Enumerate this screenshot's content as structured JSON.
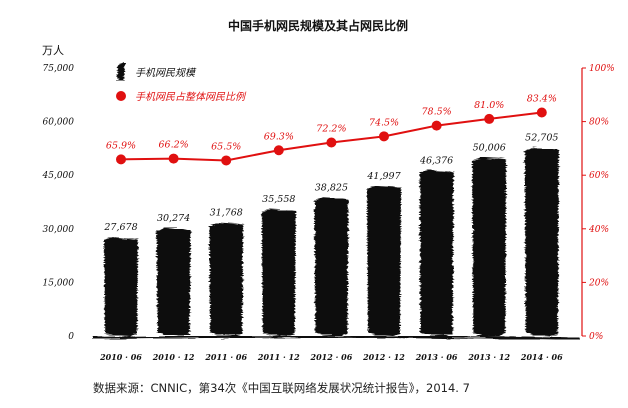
{
  "chart_data": {
    "type": "bar+line",
    "title": "中国手机网民规模及其占网民比例",
    "y_unit_label": "万人",
    "categories": [
      "2010 · 06",
      "2010 · 12",
      "2011 · 06",
      "2011 · 12",
      "2012 · 06",
      "2012 · 12",
      "2013 · 06",
      "2013 · 12",
      "2014 · 06"
    ],
    "series": [
      {
        "name": "手机网民规模",
        "type": "bar",
        "axis": "left",
        "values": [
          27678,
          30274,
          31768,
          35558,
          38825,
          41997,
          46376,
          50006,
          52705
        ],
        "labels": [
          "27,678",
          "30,274",
          "31,768",
          "35,558",
          "38,825",
          "41,997",
          "46,376",
          "50,006",
          "52,705"
        ]
      },
      {
        "name": "手机网民占整体网民比例",
        "type": "line",
        "axis": "right",
        "values": [
          65.9,
          66.2,
          65.5,
          69.3,
          72.2,
          74.5,
          78.5,
          81.0,
          83.4
        ],
        "labels": [
          "65.9%",
          "66.2%",
          "65.5%",
          "69.3%",
          "72.2%",
          "74.5%",
          "78.5%",
          "81.0%",
          "83.4%"
        ]
      }
    ],
    "y_left": {
      "min": 0,
      "max": 75000,
      "ticks": [
        "0",
        "15,000",
        "30,000",
        "45,000",
        "60,000",
        "75,000"
      ]
    },
    "y_right": {
      "min": 0,
      "max": 100,
      "ticks": [
        "0%",
        "20%",
        "40%",
        "60%",
        "80%",
        "100%"
      ]
    },
    "legend_position": "top-left",
    "grid": false
  },
  "source_text": "数据来源：CNNIC，第34次《中国互联网络发展状况统计报告》，2014. 7",
  "colors": {
    "bars": "#111111",
    "line": "#e01010"
  }
}
